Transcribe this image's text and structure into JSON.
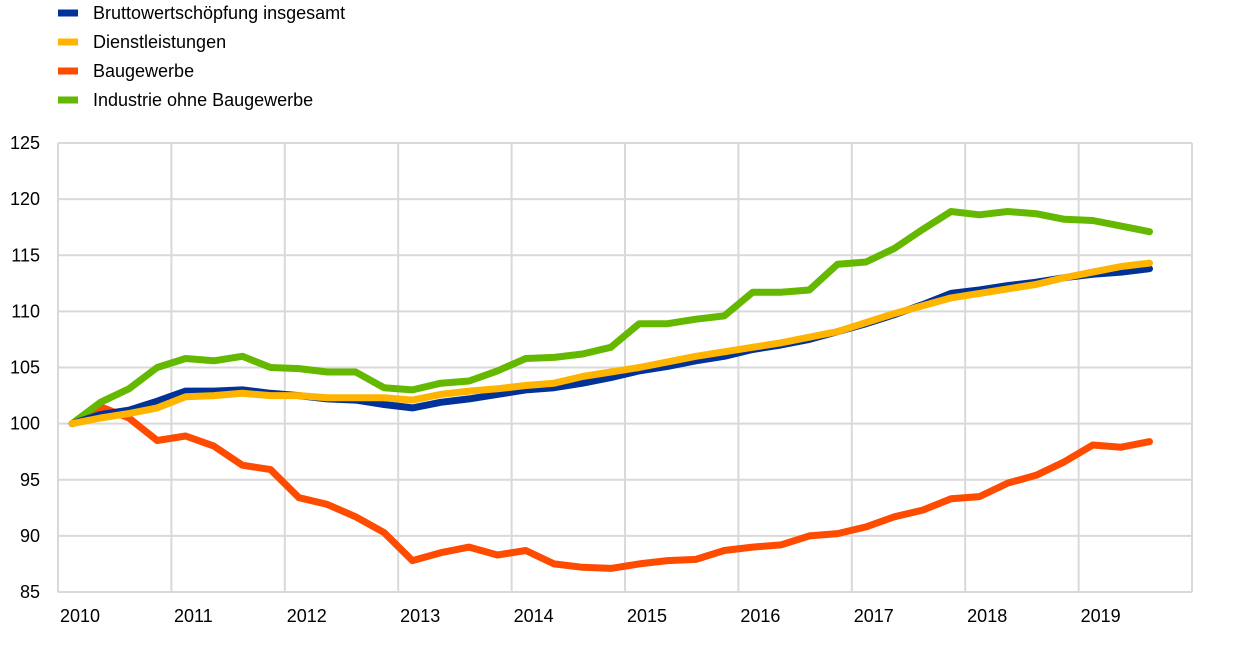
{
  "chart_data": {
    "type": "line",
    "title": "",
    "xlabel": "",
    "ylabel": "",
    "ylim": [
      85,
      125
    ],
    "yticks": [
      85,
      90,
      95,
      100,
      105,
      110,
      115,
      120,
      125
    ],
    "xtick_labels": [
      "2010",
      "2011",
      "2012",
      "2013",
      "2014",
      "2015",
      "2016",
      "2017",
      "2018",
      "2019"
    ],
    "x_start": "2010 Q1",
    "frequency": "quarterly",
    "grid": true,
    "legend_position": "top-left",
    "series": [
      {
        "name": "Bruttowertschöpfung insgesamt",
        "color": "#003299",
        "values": [
          100,
          100.8,
          101.2,
          102.0,
          102.9,
          102.9,
          103.0,
          102.7,
          102.5,
          102.2,
          102.1,
          101.7,
          101.4,
          101.9,
          102.2,
          102.6,
          103.0,
          103.2,
          103.6,
          104.1,
          104.7,
          105.1,
          105.6,
          106.0,
          106.6,
          107.0,
          107.5,
          108.2,
          108.9,
          109.7,
          110.6,
          111.6,
          111.9,
          112.3,
          112.6,
          113.0,
          113.3,
          113.5,
          113.8
        ]
      },
      {
        "name": "Dienstleistungen",
        "color": "#FFB400",
        "values": [
          100,
          100.5,
          100.9,
          101.4,
          102.4,
          102.5,
          102.7,
          102.5,
          102.5,
          102.3,
          102.3,
          102.3,
          102.1,
          102.6,
          102.9,
          103.1,
          103.4,
          103.6,
          104.2,
          104.6,
          105.0,
          105.5,
          106.0,
          106.4,
          106.8,
          107.2,
          107.7,
          108.2,
          109.0,
          109.8,
          110.5,
          111.2,
          111.6,
          112.0,
          112.4,
          113.0,
          113.5,
          114.0,
          114.3
        ]
      },
      {
        "name": "Baugewerbe",
        "color": "#FF4B00",
        "values": [
          100,
          101.5,
          100.5,
          98.5,
          98.9,
          98.0,
          96.3,
          95.9,
          93.4,
          92.8,
          91.7,
          90.3,
          87.8,
          88.5,
          89.0,
          88.3,
          88.7,
          87.5,
          87.2,
          87.1,
          87.5,
          87.8,
          87.9,
          88.7,
          89.0,
          89.2,
          90.0,
          90.2,
          90.8,
          91.7,
          92.3,
          93.3,
          93.5,
          94.7,
          95.4,
          96.6,
          98.1,
          97.9,
          98.4
        ]
      },
      {
        "name": "Industrie ohne Baugewerbe",
        "color": "#65B800",
        "values": [
          100,
          101.9,
          103.1,
          105.0,
          105.8,
          105.6,
          106.0,
          105.0,
          104.9,
          104.6,
          104.6,
          103.2,
          103.0,
          103.6,
          103.8,
          104.7,
          105.8,
          105.9,
          106.2,
          106.8,
          108.9,
          108.9,
          109.3,
          109.6,
          111.7,
          111.7,
          111.9,
          114.2,
          114.4,
          115.6,
          117.3,
          118.9,
          118.6,
          118.9,
          118.7,
          118.2,
          118.1,
          117.6,
          117.1
        ]
      }
    ]
  }
}
